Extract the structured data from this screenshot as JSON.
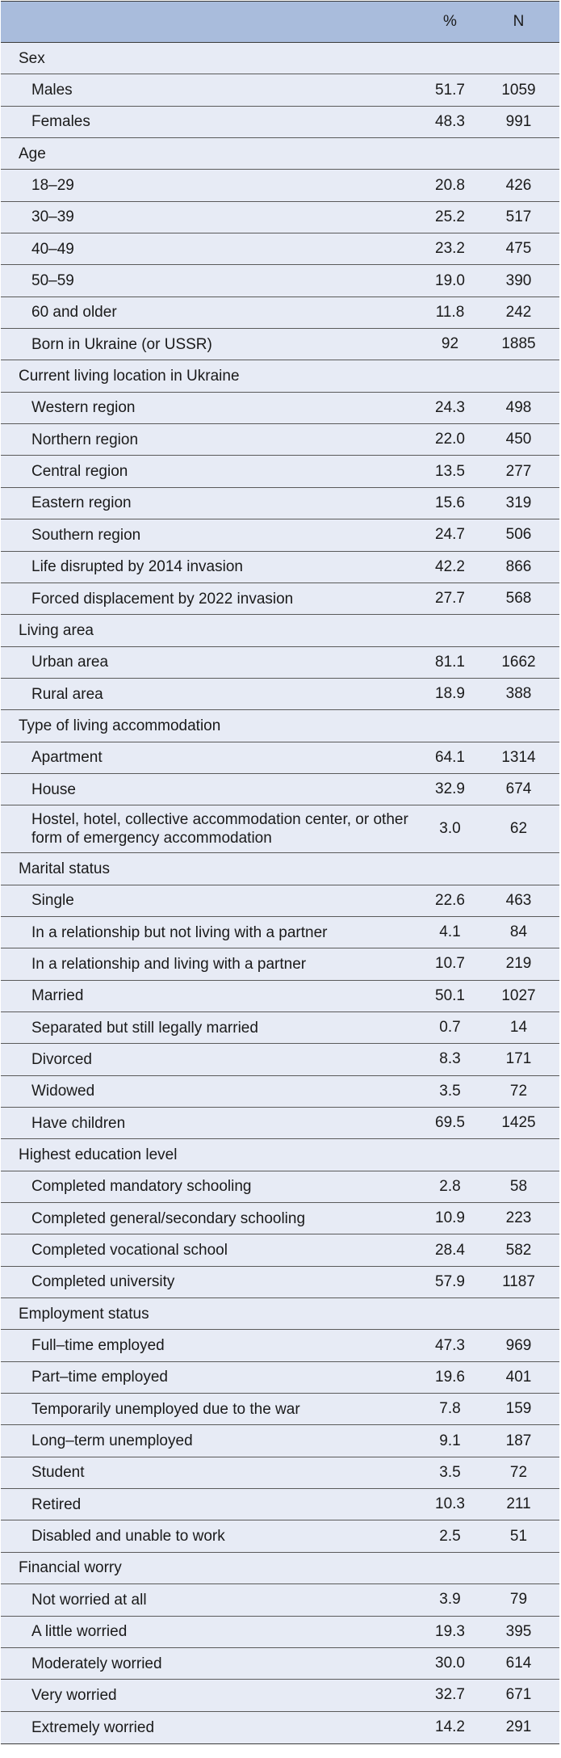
{
  "header": {
    "label": "",
    "pct": "%",
    "n": "N"
  },
  "rows": [
    {
      "type": "category",
      "label": "Sex",
      "pct": "",
      "n": ""
    },
    {
      "type": "sub",
      "label": "Males",
      "pct": "51.7",
      "n": "1059"
    },
    {
      "type": "sub",
      "label": "Females",
      "pct": "48.3",
      "n": "991"
    },
    {
      "type": "category",
      "label": "Age",
      "pct": "",
      "n": ""
    },
    {
      "type": "sub",
      "label": "18–29",
      "pct": "20.8",
      "n": "426"
    },
    {
      "type": "sub",
      "label": "30–39",
      "pct": "25.2",
      "n": "517"
    },
    {
      "type": "sub",
      "label": "40–49",
      "pct": "23.2",
      "n": "475"
    },
    {
      "type": "sub",
      "label": "50–59",
      "pct": "19.0",
      "n": "390"
    },
    {
      "type": "sub",
      "label": "60 and older",
      "pct": "11.8",
      "n": "242"
    },
    {
      "type": "sub",
      "label": "Born in Ukraine (or USSR)",
      "pct": "92",
      "n": "1885"
    },
    {
      "type": "category",
      "label": "Current living location in Ukraine",
      "pct": "",
      "n": ""
    },
    {
      "type": "sub",
      "label": "Western region",
      "pct": "24.3",
      "n": "498"
    },
    {
      "type": "sub",
      "label": "Northern region",
      "pct": "22.0",
      "n": "450"
    },
    {
      "type": "sub",
      "label": "Central region",
      "pct": "13.5",
      "n": "277"
    },
    {
      "type": "sub",
      "label": "Eastern region",
      "pct": "15.6",
      "n": "319"
    },
    {
      "type": "sub",
      "label": "Southern region",
      "pct": "24.7",
      "n": "506"
    },
    {
      "type": "sub",
      "label": "Life disrupted by 2014 invasion",
      "pct": "42.2",
      "n": "866"
    },
    {
      "type": "sub",
      "label": "Forced displacement by 2022 invasion",
      "pct": "27.7",
      "n": "568"
    },
    {
      "type": "category",
      "label": "Living area",
      "pct": "",
      "n": ""
    },
    {
      "type": "sub",
      "label": "Urban area",
      "pct": "81.1",
      "n": "1662"
    },
    {
      "type": "sub",
      "label": "Rural area",
      "pct": "18.9",
      "n": "388"
    },
    {
      "type": "category",
      "label": "Type of living accommodation",
      "pct": "",
      "n": ""
    },
    {
      "type": "sub",
      "label": "Apartment",
      "pct": "64.1",
      "n": "1314"
    },
    {
      "type": "sub",
      "label": "House",
      "pct": "32.9",
      "n": "674"
    },
    {
      "type": "sub",
      "tall": true,
      "label": "Hostel, hotel, collective accommodation center, or other form of emergency accommodation",
      "pct": "3.0",
      "n": "62"
    },
    {
      "type": "category",
      "label": "Marital status",
      "pct": "",
      "n": ""
    },
    {
      "type": "sub",
      "label": "Single",
      "pct": "22.6",
      "n": "463"
    },
    {
      "type": "sub",
      "label": "In a relationship but not living with a partner",
      "pct": "4.1",
      "n": "84"
    },
    {
      "type": "sub",
      "label": "In a relationship and living with a partner",
      "pct": "10.7",
      "n": "219"
    },
    {
      "type": "sub",
      "label": "Married",
      "pct": "50.1",
      "n": "1027"
    },
    {
      "type": "sub",
      "label": "Separated but still legally married",
      "pct": "0.7",
      "n": "14"
    },
    {
      "type": "sub",
      "label": "Divorced",
      "pct": "8.3",
      "n": "171"
    },
    {
      "type": "sub",
      "label": "Widowed",
      "pct": "3.5",
      "n": "72"
    },
    {
      "type": "sub",
      "label": "Have children",
      "pct": "69.5",
      "n": "1425"
    },
    {
      "type": "category",
      "label": "Highest education level",
      "pct": "",
      "n": ""
    },
    {
      "type": "sub",
      "label": "Completed mandatory schooling",
      "pct": "2.8",
      "n": "58"
    },
    {
      "type": "sub",
      "label": "Completed general/secondary schooling",
      "pct": "10.9",
      "n": "223"
    },
    {
      "type": "sub",
      "label": "Completed vocational school",
      "pct": "28.4",
      "n": "582"
    },
    {
      "type": "sub",
      "label": "Completed university",
      "pct": "57.9",
      "n": "1187"
    },
    {
      "type": "category",
      "label": "Employment status",
      "pct": "",
      "n": ""
    },
    {
      "type": "sub",
      "label": "Full–time employed",
      "pct": "47.3",
      "n": "969"
    },
    {
      "type": "sub",
      "label": "Part–time employed",
      "pct": "19.6",
      "n": "401"
    },
    {
      "type": "sub",
      "label": "Temporarily unemployed due to the war",
      "pct": "7.8",
      "n": "159"
    },
    {
      "type": "sub",
      "label": "Long–term unemployed",
      "pct": "9.1",
      "n": "187"
    },
    {
      "type": "sub",
      "label": "Student",
      "pct": "3.5",
      "n": "72"
    },
    {
      "type": "sub",
      "label": "Retired",
      "pct": "10.3",
      "n": "211"
    },
    {
      "type": "sub",
      "label": "Disabled and unable to work",
      "pct": "2.5",
      "n": "51"
    },
    {
      "type": "category",
      "label": "Financial worry",
      "pct": "",
      "n": ""
    },
    {
      "type": "sub",
      "label": "Not worried at all",
      "pct": "3.9",
      "n": "79"
    },
    {
      "type": "sub",
      "label": "A little worried",
      "pct": "19.3",
      "n": "395"
    },
    {
      "type": "sub",
      "label": "Moderately worried",
      "pct": "30.0",
      "n": "614"
    },
    {
      "type": "sub",
      "label": "Very worried",
      "pct": "32.7",
      "n": "671"
    },
    {
      "type": "sub",
      "label": "Extremely worried",
      "pct": "14.2",
      "n": "291"
    }
  ]
}
